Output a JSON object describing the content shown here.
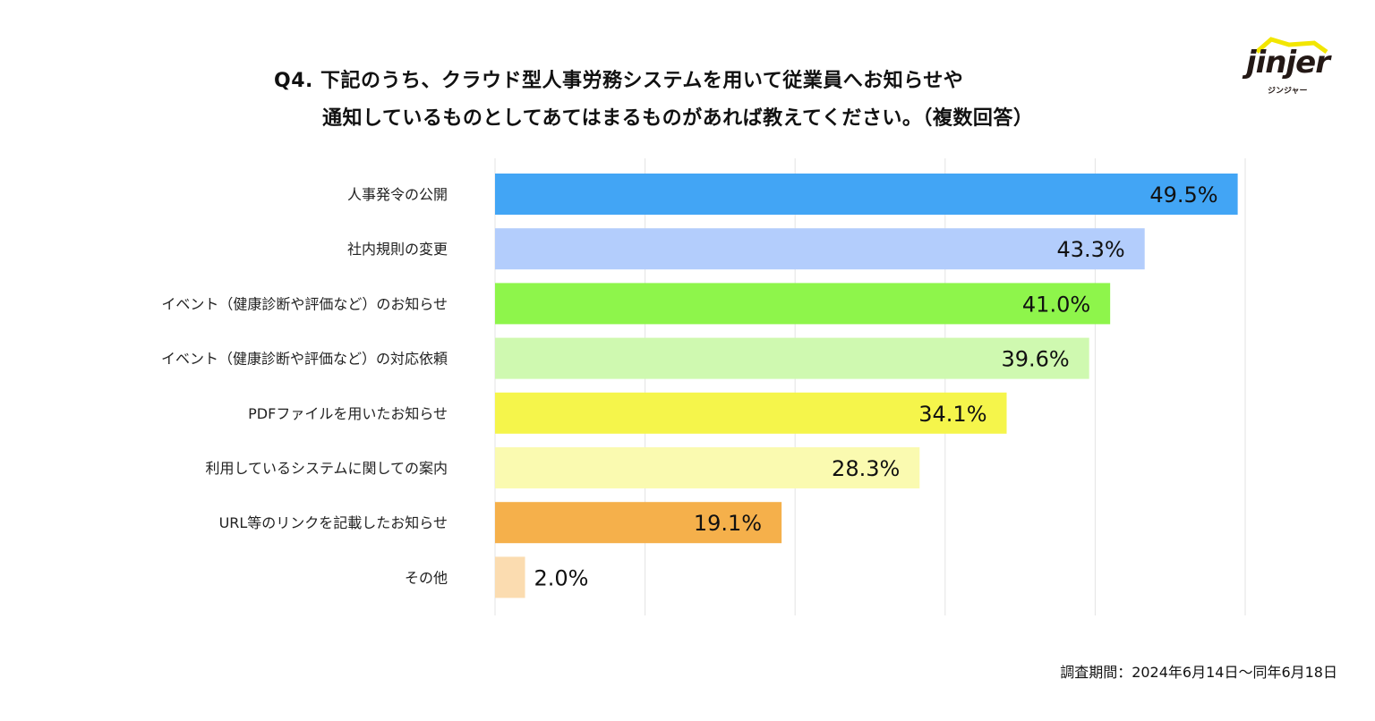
{
  "title": {
    "line1": "Q4.  下記のうち、クラウド型人事労務システムを用いて従業員へお知らせや",
    "line2": "通知しているものとしてあてはまるものがあれば教えてください。（複数回答）"
  },
  "logo": {
    "text": "jinjer",
    "kana": "ジンジャー"
  },
  "footnote": "調査期間：2024年6月14日〜同年6月18日",
  "chart_data": {
    "type": "bar",
    "orientation": "horizontal",
    "title": "Q4",
    "xlim": [
      0,
      50
    ],
    "grid": true,
    "categories": [
      "人事発令の公開",
      "社内規則の変更",
      "イベント（健康診断や評価など）のお知らせ",
      "イベント（健康診断や評価など）の対応依頼",
      "PDFファイルを用いたお知らせ",
      "利用しているシステムに関しての案内",
      "URL等のリンクを記載したお知らせ",
      "その他"
    ],
    "values": [
      49.5,
      43.3,
      41.0,
      39.6,
      34.1,
      28.3,
      19.1,
      2.0
    ],
    "labels": [
      "49.5%",
      "43.3%",
      "41.0%",
      "39.6%",
      "34.1%",
      "28.3%",
      "19.1%",
      "2.0%"
    ],
    "colors": [
      "#42a5f5",
      "#b3cdfc",
      "#8ef54b",
      "#cff9b0",
      "#f5f54b",
      "#fafab0",
      "#f5b04b",
      "#fbdcb0"
    ]
  }
}
